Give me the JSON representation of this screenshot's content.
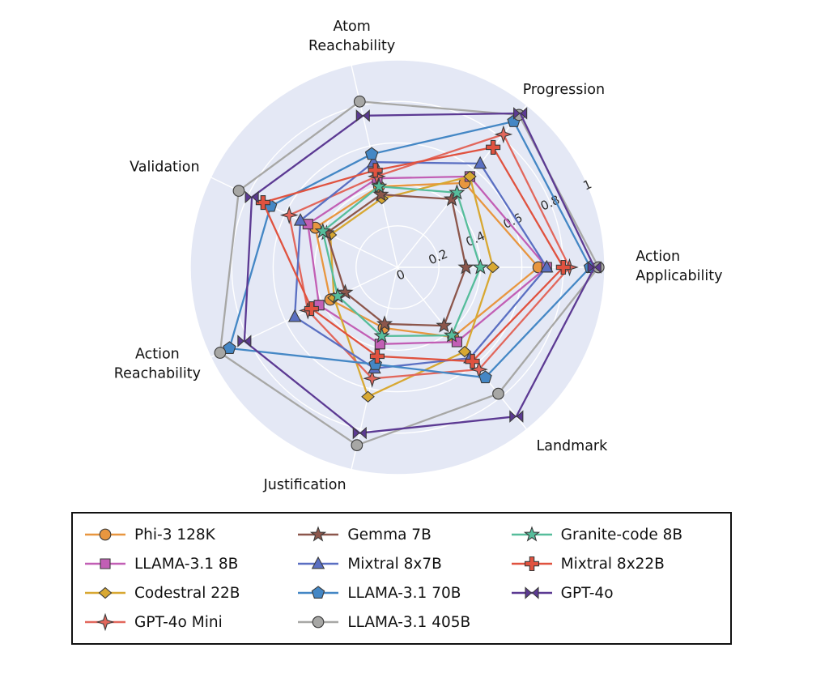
{
  "figure": {
    "background_color": "#ffffff"
  },
  "chart_data": {
    "type": "radar",
    "title": "",
    "categories": [
      "Atom Reachability",
      "Progression",
      "Action Applicability",
      "Landmark",
      "Justification",
      "Action Reachability",
      "Validation"
    ],
    "radial_ticks": [
      "0",
      "0.2",
      "0.4",
      "0.6",
      "0.8",
      "1"
    ],
    "radial_range": [
      0,
      1
    ],
    "start_angle_deg": 102.857,
    "direction": "clockwise",
    "grid": true,
    "plot_background_color": "#e4e8f5",
    "grid_color": "#ffffff",
    "marker_edge_color": "#3b3b3b",
    "legend_position": "bottom",
    "series": [
      {
        "name": "Phi-3 128K",
        "color": "#e8963f",
        "marker": "circle",
        "values": [
          0.4,
          0.52,
          0.68,
          0.43,
          0.3,
          0.36,
          0.44
        ]
      },
      {
        "name": "LLAMA-3.1 8B",
        "color": "#c25fb5",
        "marker": "square",
        "values": [
          0.44,
          0.56,
          0.72,
          0.46,
          0.38,
          0.42,
          0.48
        ]
      },
      {
        "name": "Codestral 22B",
        "color": "#d8a832",
        "marker": "diamond",
        "values": [
          0.34,
          0.56,
          0.46,
          0.52,
          0.64,
          0.34,
          0.36
        ]
      },
      {
        "name": "GPT-4o Mini",
        "color": "#e2675c",
        "marker": "star4",
        "values": [
          0.45,
          0.82,
          0.83,
          0.63,
          0.55,
          0.48,
          0.58
        ]
      },
      {
        "name": "Gemma 7B",
        "color": "#8c564b",
        "marker": "star5",
        "values": [
          0.36,
          0.42,
          0.33,
          0.36,
          0.28,
          0.28,
          0.38
        ]
      },
      {
        "name": "Mixtral 8x7B",
        "color": "#5a6fc2",
        "marker": "triangle",
        "values": [
          0.52,
          0.64,
          0.72,
          0.56,
          0.5,
          0.55,
          0.52
        ]
      },
      {
        "name": "LLAMA-3.1 70B",
        "color": "#4487c5",
        "marker": "pentagon",
        "values": [
          0.56,
          0.9,
          0.93,
          0.68,
          0.48,
          0.9,
          0.68
        ]
      },
      {
        "name": "LLAMA-3.1 405B",
        "color": "#a7a7a5",
        "marker": "circle",
        "values": [
          0.82,
          0.94,
          0.97,
          0.78,
          0.88,
          0.95,
          0.85
        ]
      },
      {
        "name": "Granite-code 8B",
        "color": "#56bd9b",
        "marker": "star5",
        "values": [
          0.4,
          0.46,
          0.4,
          0.42,
          0.34,
          0.32,
          0.4
        ]
      },
      {
        "name": "Mixtral 8x22B",
        "color": "#e0523f",
        "marker": "plus",
        "values": [
          0.48,
          0.74,
          0.8,
          0.58,
          0.44,
          0.46,
          0.72
        ]
      },
      {
        "name": "GPT-4o",
        "color": "#5c3a93",
        "marker": "bowtie",
        "values": [
          0.75,
          0.95,
          0.95,
          0.92,
          0.82,
          0.82,
          0.78
        ]
      }
    ]
  }
}
